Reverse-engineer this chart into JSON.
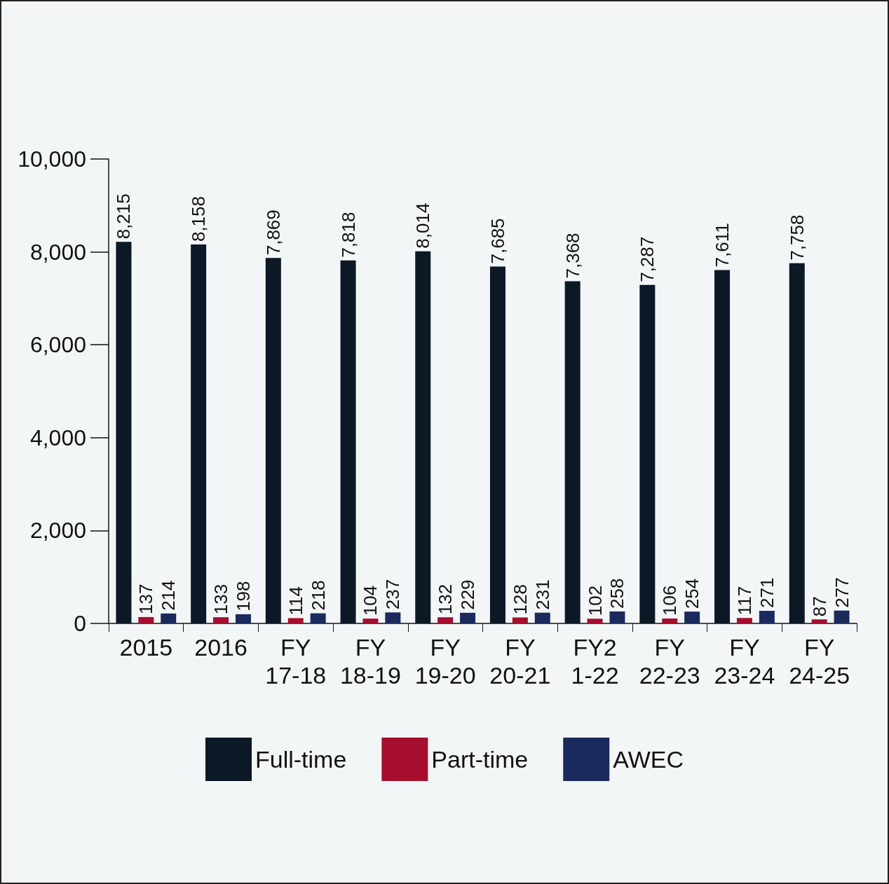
{
  "chart_data": {
    "type": "bar",
    "categories": [
      "2015",
      "2016",
      "FY\n17-18",
      "FY\n18-19",
      "FY\n19-20",
      "FY\n20-21",
      "FY2\n1-22",
      "FY\n22-23",
      "FY\n23-24",
      "FY\n24-25"
    ],
    "series": [
      {
        "name": "Full-time",
        "color": "#0c1826",
        "values": [
          8215,
          8158,
          7869,
          7818,
          8014,
          7685,
          7368,
          7287,
          7611,
          7758
        ],
        "value_labels": [
          "8,215",
          "8,158",
          "7,869",
          "7,818",
          "8,014",
          "7,685",
          "7,368",
          "7,287",
          "7,611",
          "7,758"
        ]
      },
      {
        "name": "Part-time",
        "color": "#a50e2d",
        "values": [
          137,
          133,
          114,
          104,
          132,
          128,
          102,
          106,
          117,
          87
        ],
        "value_labels": [
          "137",
          "133",
          "114",
          "104",
          "132",
          "128",
          "102",
          "106",
          "117",
          "87"
        ]
      },
      {
        "name": "AWEC",
        "color": "#1b2a5c",
        "values": [
          214,
          198,
          218,
          237,
          229,
          231,
          258,
          254,
          271,
          277
        ],
        "value_labels": [
          "214",
          "198",
          "218",
          "237",
          "229",
          "231",
          "258",
          "254",
          "271",
          "277"
        ]
      }
    ],
    "ylim": [
      0,
      10000
    ],
    "yticks": [
      0,
      {
        "value": 2000,
        "label": "2,000"
      },
      {
        "value": 4000,
        "label": "4,000"
      },
      {
        "value": 6000,
        "label": "6,000"
      },
      {
        "value": 8000,
        "label": "8,000"
      },
      {
        "value": 10000,
        "label": "10,000"
      }
    ],
    "grid": false,
    "legend": "bottom"
  }
}
